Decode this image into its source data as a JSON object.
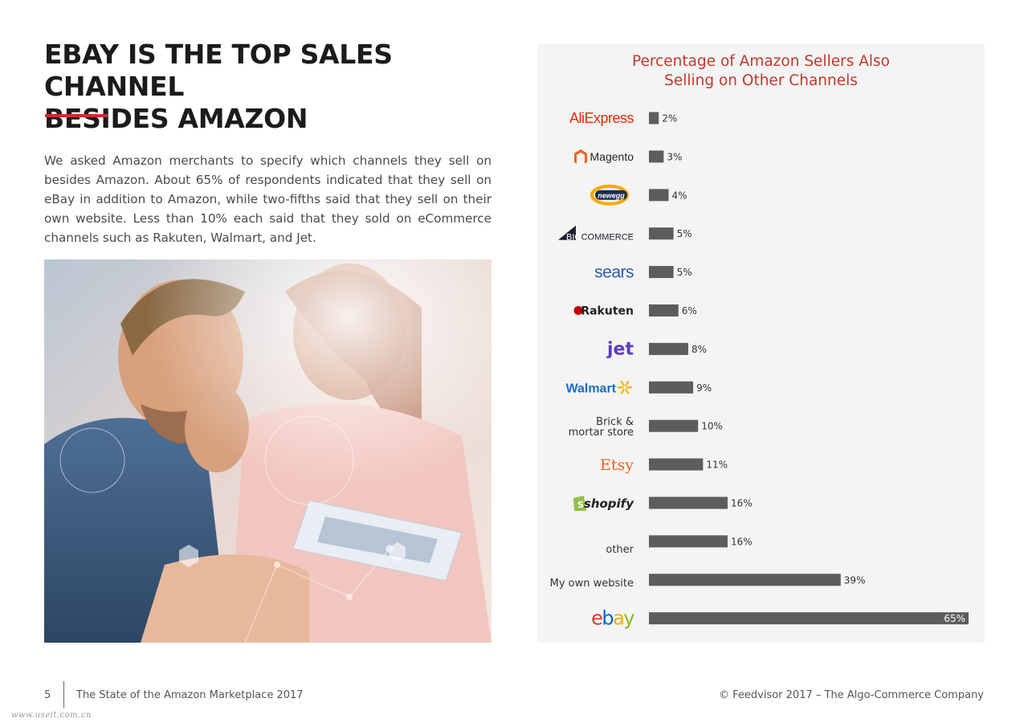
{
  "page": {
    "title_lines": [
      "EBAY IS THE TOP SALES CHANNEL",
      "BESIDES AMAZON"
    ],
    "intro": "We asked Amazon merchants to specify which channels they sell on besides Amazon. About 65% of respondents indicated that they sell on eBay in addition to Amazon, while two-fifths said that they sell on their own website. Less than 10% each said that they sold on eCommerce channels such as Rakuten, Walmart, and Jet.",
    "accent_color": "#c9302c"
  },
  "footer": {
    "page_number": "5",
    "document": "The State of the Amazon Marketplace 2017",
    "copyright": "© Feedvisor 2017 – The Algo-Commerce Company"
  },
  "watermark": "www.useit.com.cn",
  "chart_data": {
    "type": "bar",
    "orientation": "horizontal",
    "title_lines": [
      "Percentage of Amazon Sellers Also",
      "Selling on Other Channels"
    ],
    "xlim": [
      0,
      65
    ],
    "bar_color": "#5d5d5d",
    "title_color": "#c0392b",
    "categories": [
      {
        "label": "AliExpress",
        "value": 2,
        "value_label": "2%",
        "logo": "aliexpress-logo"
      },
      {
        "label": "Magento",
        "value": 3,
        "value_label": "3%",
        "logo": "magento-logo"
      },
      {
        "label": "newegg",
        "value": 4,
        "value_label": "4%",
        "logo": "newegg-logo"
      },
      {
        "label": "BIGCOMMERCE",
        "value": 5,
        "value_label": "5%",
        "logo": "bigcommerce-logo"
      },
      {
        "label": "sears",
        "value": 5,
        "value_label": "5%",
        "logo": "sears-logo"
      },
      {
        "label": "Rakuten",
        "value": 6,
        "value_label": "6%",
        "logo": "rakuten-logo"
      },
      {
        "label": "Jet",
        "value": 8,
        "value_label": "8%",
        "logo": "jet-logo"
      },
      {
        "label": "Walmart",
        "value": 9,
        "value_label": "9%",
        "logo": "walmart-logo"
      },
      {
        "label": "Brick & mortar store",
        "value": 10,
        "value_label": "10%",
        "logo": "text"
      },
      {
        "label": "Etsy",
        "value": 11,
        "value_label": "11%",
        "logo": "etsy-logo"
      },
      {
        "label": "shopify",
        "value": 16,
        "value_label": "16%",
        "logo": "shopify-logo"
      },
      {
        "label": "other",
        "value": 16,
        "value_label": "16%",
        "logo": "text"
      },
      {
        "label": "My own website",
        "value": 39,
        "value_label": "39%",
        "logo": "text"
      },
      {
        "label": "ebay",
        "value": 65,
        "value_label": "65%",
        "logo": "ebay-logo"
      }
    ]
  }
}
